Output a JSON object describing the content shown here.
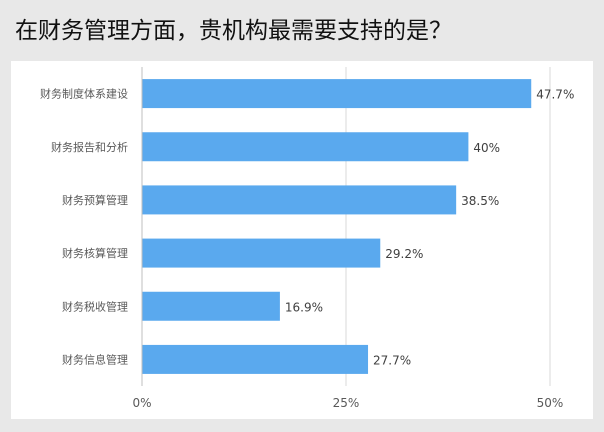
{
  "title": "在财务管理方面，贵机构最需要支持的是？",
  "chart_data": {
    "type": "bar",
    "orientation": "horizontal",
    "title": "在财务管理方面，贵机构最需要支持的是？",
    "categories": [
      "财务制度体系建设",
      "财务报告和分析",
      "财务预算管理",
      "财务核算管理",
      "财务税收管理",
      "财务信息管理"
    ],
    "values": [
      47.7,
      40,
      38.5,
      29.2,
      16.9,
      27.7
    ],
    "value_labels": [
      "47.7%",
      "40%",
      "38.5%",
      "29.2%",
      "16.9%",
      "27.7%"
    ],
    "xlim": [
      0,
      50
    ],
    "x_ticks": [
      0,
      25,
      50
    ],
    "x_tick_labels": [
      "0%",
      "25%",
      "50%"
    ],
    "xlabel": "",
    "ylabel": "",
    "grid": true,
    "legend": "none",
    "bar_color": "#5aa9ee",
    "grid_color": "#d9d9d9",
    "axis_color": "#bfbfbf"
  }
}
